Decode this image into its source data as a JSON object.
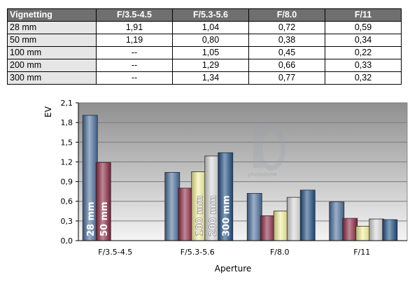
{
  "table": {
    "header_label": "Vignetting",
    "columns": [
      "F/3.5-4.5",
      "F/5.3-5.6",
      "F/8.0",
      "F/11"
    ],
    "rows": [
      {
        "label": "28 mm",
        "values": [
          "1,91",
          "1,04",
          "0,72",
          "0,59"
        ]
      },
      {
        "label": "50 mm",
        "values": [
          "1,19",
          "0,80",
          "0,38",
          "0,34"
        ]
      },
      {
        "label": "100 mm",
        "values": [
          "--",
          "1,05",
          "0,45",
          "0,22"
        ]
      },
      {
        "label": "200 mm",
        "values": [
          "--",
          "1,29",
          "0,66",
          "0,33"
        ]
      },
      {
        "label": "300 mm",
        "values": [
          "--",
          "1,34",
          "0,77",
          "0,32"
        ]
      }
    ]
  },
  "chart_data": {
    "type": "bar",
    "categories": [
      "F/3.5-4.5",
      "F/5.3-5.6",
      "F/8.0",
      "F/11"
    ],
    "series": [
      {
        "name": "28 mm",
        "values": [
          1.91,
          1.04,
          0.72,
          0.59
        ],
        "color": "#4a6e9c"
      },
      {
        "name": "50 mm",
        "values": [
          1.19,
          0.8,
          0.38,
          0.34
        ],
        "color": "#8a2540"
      },
      {
        "name": "100 mm",
        "values": [
          null,
          1.05,
          0.45,
          0.22
        ],
        "color": "#f4f09a"
      },
      {
        "name": "200 mm",
        "values": [
          null,
          1.29,
          0.66,
          0.33
        ],
        "color": "#d8d8d8"
      },
      {
        "name": "300 mm",
        "values": [
          null,
          1.34,
          0.77,
          0.32
        ],
        "color": "#1f4f82"
      }
    ],
    "xlabel": "Aperture",
    "ylabel": "EV",
    "ylim": [
      0,
      2.1
    ],
    "yticks": [
      "0,0",
      "0,3",
      "0,6",
      "0,9",
      "1,2",
      "1,5",
      "1,8",
      "2,1"
    ],
    "ytick_values": [
      0,
      0.3,
      0.6,
      0.9,
      1.2,
      1.5,
      1.8,
      2.1
    ],
    "grid": true,
    "legend": "labels on bars",
    "watermark": "photozone"
  }
}
